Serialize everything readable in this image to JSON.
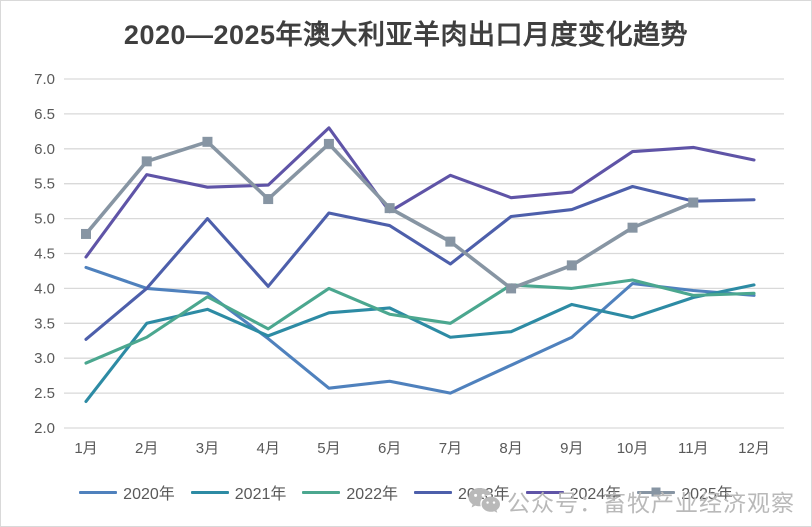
{
  "title": "2020—2025年澳大利亚羊肉出口月度变化趋势",
  "watermark": {
    "text": "公众号：畜牧产业经济观察",
    "icon": "wechat-icon"
  },
  "colors": {
    "title_text": "#3f3f3f",
    "axis_text": "#595959",
    "gridline": "#d9d9d9",
    "watermark_text": "#b9b9b9"
  },
  "chart_data": {
    "type": "line",
    "title": "2020—2025年澳大利亚羊肉出口月度变化趋势",
    "categories": [
      "1月",
      "2月",
      "3月",
      "4月",
      "5月",
      "6月",
      "7月",
      "8月",
      "9月",
      "10月",
      "11月",
      "12月"
    ],
    "y_ticks": [
      "2.0",
      "2.5",
      "3.0",
      "3.5",
      "4.0",
      "4.5",
      "5.0",
      "5.5",
      "6.0",
      "6.5",
      "7.0"
    ],
    "ylim": [
      2.0,
      7.0
    ],
    "grid": "horizontal",
    "legend_position": "bottom",
    "series": [
      {
        "name": "2020年",
        "color": "#4f81bd",
        "marker": "none",
        "values": [
          4.3,
          4.0,
          3.93,
          3.28,
          2.57,
          2.67,
          2.5,
          2.9,
          3.3,
          4.07,
          3.97,
          3.9
        ]
      },
      {
        "name": "2021年",
        "color": "#2d8ba4",
        "marker": "none",
        "values": [
          2.38,
          3.5,
          3.7,
          3.32,
          3.65,
          3.72,
          3.3,
          3.38,
          3.77,
          3.58,
          3.87,
          4.05
        ]
      },
      {
        "name": "2022年",
        "color": "#4ba78f",
        "marker": "none",
        "values": [
          2.93,
          3.3,
          3.88,
          3.42,
          4.0,
          3.63,
          3.5,
          4.05,
          4.0,
          4.12,
          3.9,
          3.93
        ]
      },
      {
        "name": "2023年",
        "color": "#4d5fab",
        "marker": "none",
        "values": [
          3.27,
          4.0,
          5.0,
          4.03,
          5.08,
          4.9,
          4.35,
          5.03,
          5.13,
          5.46,
          5.25,
          5.27
        ]
      },
      {
        "name": "2024年",
        "color": "#5f54a7",
        "marker": "none",
        "values": [
          4.45,
          5.63,
          5.45,
          5.48,
          6.3,
          5.1,
          5.62,
          5.3,
          5.38,
          5.96,
          6.02,
          5.84
        ]
      },
      {
        "name": "2025年",
        "color": "#8795a3",
        "marker": "square",
        "values": [
          4.78,
          5.82,
          6.1,
          5.28,
          6.07,
          5.15,
          4.67,
          4.0,
          4.33,
          4.87,
          5.23,
          null
        ]
      }
    ]
  }
}
